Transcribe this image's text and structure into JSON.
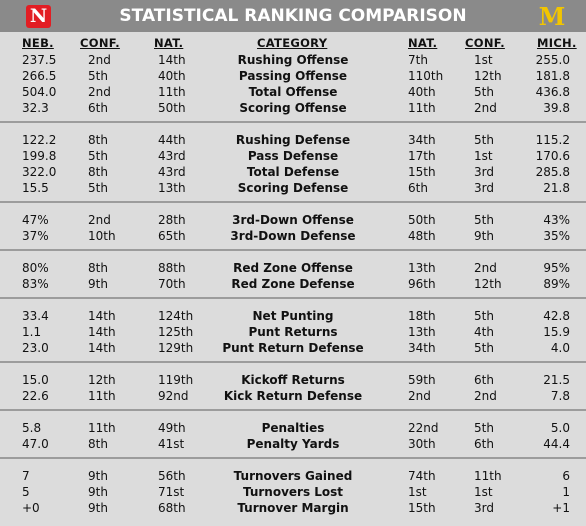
{
  "header": {
    "title": "STATISTICAL RANKING COMPARISON",
    "left_logo": "N",
    "right_logo": "M"
  },
  "columns": [
    "NEB.",
    "CONF.",
    "NAT.",
    "CATEGORY",
    "NAT.",
    "CONF.",
    "MICH."
  ],
  "groups": [
    {
      "rows": [
        [
          "237.5",
          "2nd",
          "14th",
          "Rushing Offense",
          "7th",
          "1st",
          "255.0"
        ],
        [
          "266.5",
          "5th",
          "40th",
          "Passing Offense",
          "110th",
          "12th",
          "181.8"
        ],
        [
          "504.0",
          "2nd",
          "11th",
          "Total Offense",
          "40th",
          "5th",
          "436.8"
        ],
        [
          "32.3",
          "6th",
          "50th",
          "Scoring Offense",
          "11th",
          "2nd",
          "39.8"
        ]
      ]
    },
    {
      "rows": [
        [
          "122.2",
          "8th",
          "44th",
          "Rushing Defense",
          "34th",
          "5th",
          "115.2"
        ],
        [
          "199.8",
          "5th",
          "43rd",
          "Pass Defense",
          "17th",
          "1st",
          "170.6"
        ],
        [
          "322.0",
          "8th",
          "43rd",
          "Total Defense",
          "15th",
          "3rd",
          "285.8"
        ],
        [
          "15.5",
          "5th",
          "13th",
          "Scoring Defense",
          "6th",
          "3rd",
          "21.8"
        ]
      ]
    },
    {
      "rows": [
        [
          "47%",
          "2nd",
          "28th",
          "3rd-Down Offense",
          "50th",
          "5th",
          "43%"
        ],
        [
          "37%",
          "10th",
          "65th",
          "3rd-Down Defense",
          "48th",
          "9th",
          "35%"
        ]
      ]
    },
    {
      "rows": [
        [
          "80%",
          "8th",
          "88th",
          "Red Zone Offense",
          "13th",
          "2nd",
          "95%"
        ],
        [
          "83%",
          "9th",
          "70th",
          "Red Zone Defense",
          "96th",
          "12th",
          "89%"
        ]
      ]
    },
    {
      "rows": [
        [
          "33.4",
          "14th",
          "124th",
          "Net Punting",
          "18th",
          "5th",
          "42.8"
        ],
        [
          "1.1",
          "14th",
          "125th",
          "Punt Returns",
          "13th",
          "4th",
          "15.9"
        ],
        [
          "23.0",
          "14th",
          "129th",
          "Punt Return Defense",
          "34th",
          "5th",
          "4.0"
        ]
      ]
    },
    {
      "rows": [
        [
          "15.0",
          "12th",
          "119th",
          "Kickoff Returns",
          "59th",
          "6th",
          "21.5"
        ],
        [
          "22.6",
          "11th",
          "92nd",
          "Kick Return Defense",
          "2nd",
          "2nd",
          "7.8"
        ]
      ]
    },
    {
      "rows": [
        [
          "5.8",
          "11th",
          "49th",
          "Penalties",
          "22nd",
          "5th",
          "5.0"
        ],
        [
          "47.0",
          "8th",
          "41st",
          "Penalty Yards",
          "30th",
          "6th",
          "44.4"
        ]
      ]
    },
    {
      "rows": [
        [
          "7",
          "9th",
          "56th",
          "Turnovers Gained",
          "74th",
          "11th",
          "6"
        ],
        [
          "5",
          "9th",
          "71st",
          "Turnovers Lost",
          "1st",
          "1st",
          "1"
        ],
        [
          "+0",
          "9th",
          "68th",
          "Turnover Margin",
          "15th",
          "3rd",
          "+1"
        ]
      ]
    }
  ]
}
